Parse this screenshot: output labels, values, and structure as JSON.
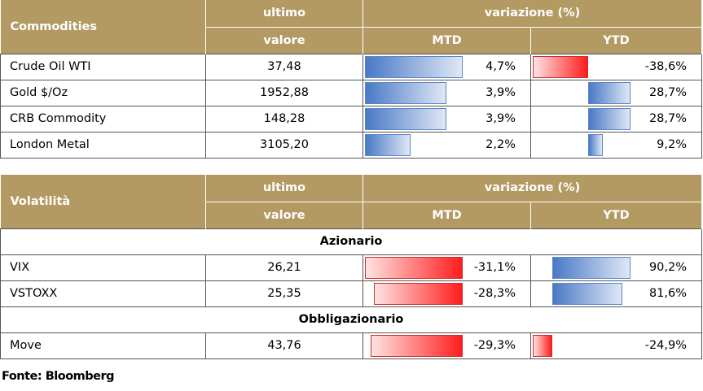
{
  "commodities": {
    "header": {
      "title": "Commodities",
      "ultimo": "ultimo",
      "valore": "valore",
      "variazione": "variazione (%)",
      "mtd": "MTD",
      "ytd": "YTD"
    },
    "rows": [
      {
        "name": "Crude Oil WTI",
        "value": "37,48",
        "mtd": "4,7%",
        "ytd": "-38,6%"
      },
      {
        "name": "Gold $/Oz",
        "value": "1952,88",
        "mtd": "3,9%",
        "ytd": "28,7%"
      },
      {
        "name": "CRB Commodity",
        "value": "148,28",
        "mtd": "3,9%",
        "ytd": "28,7%"
      },
      {
        "name": "London Metal",
        "value": "3105,20",
        "mtd": "2,2%",
        "ytd": "9,2%"
      }
    ]
  },
  "volatility": {
    "header": {
      "title": "Volatilità",
      "ultimo": "ultimo",
      "valore": "valore",
      "variazione": "variazione (%)",
      "mtd": "MTD",
      "ytd": "YTD"
    },
    "section_equity": "Azionario",
    "section_bonds": "Obbligazionario",
    "equity_rows": [
      {
        "name": "VIX",
        "value": "26,21",
        "mtd": "-31,1%",
        "ytd": "90,2%"
      },
      {
        "name": "VSTOXX",
        "value": "25,35",
        "mtd": "-28,3%",
        "ytd": "81,6%"
      }
    ],
    "bond_rows": [
      {
        "name": "Move",
        "value": "43,76",
        "mtd": "-29,3%",
        "ytd": "-24,9%"
      }
    ]
  },
  "source": "Fonte: Bloomberg",
  "bar_levels": {
    "commodities_mtd": [
      4.7,
      3.9,
      3.9,
      2.2
    ],
    "commodities_ytd": [
      -38.6,
      28.7,
      28.7,
      9.2
    ],
    "vol_mtd": [
      -31.1,
      -28.3,
      -29.3
    ],
    "vol_ytd": [
      90.2,
      81.6,
      -24.9
    ]
  },
  "colors": {
    "header_gold": "#b39a63",
    "positive_blue": "#4a79c6",
    "negative_red": "#ff1d1d"
  }
}
